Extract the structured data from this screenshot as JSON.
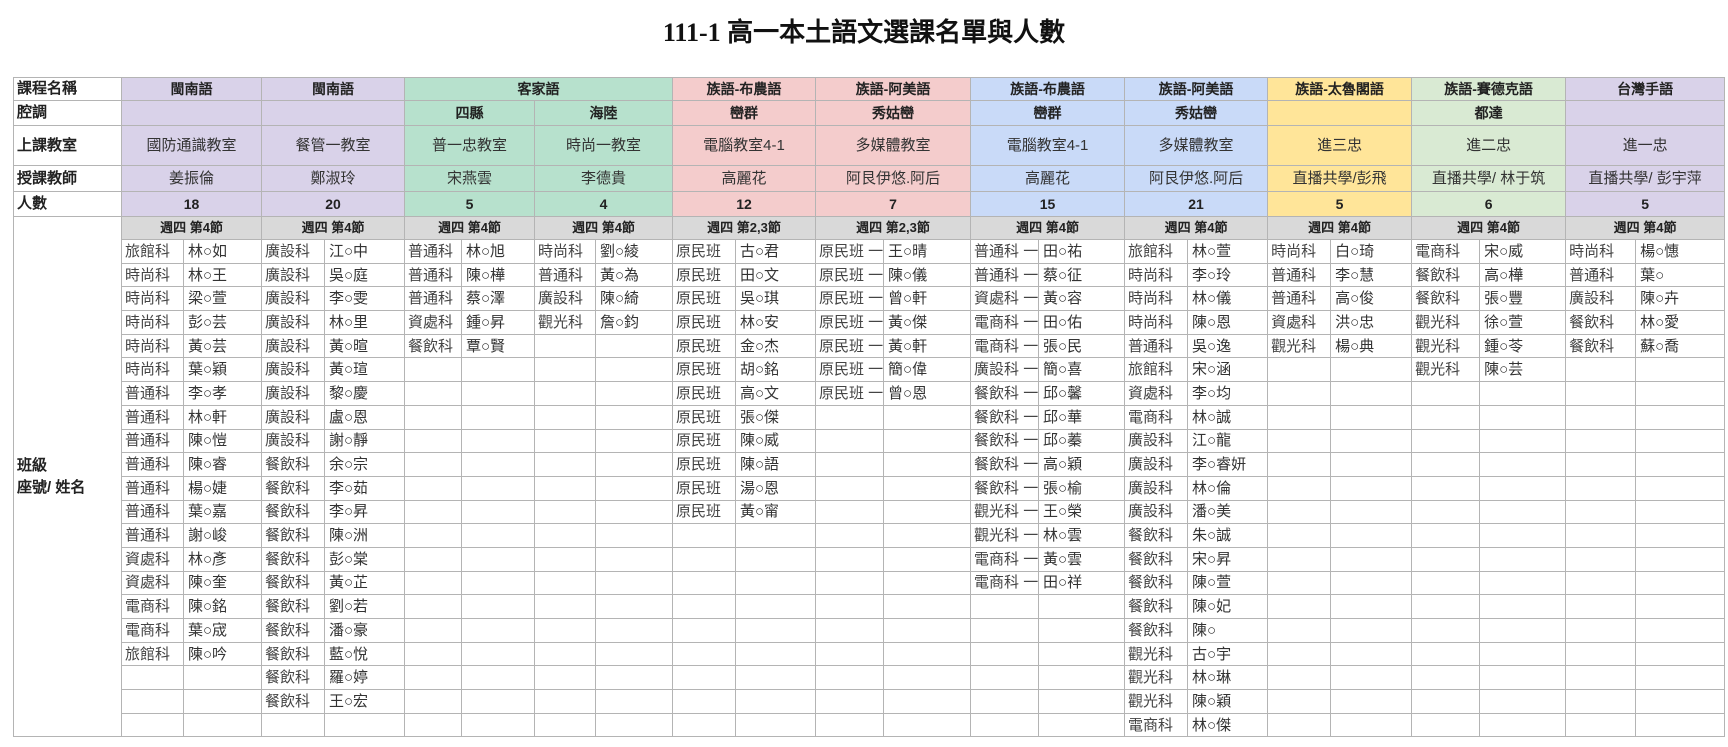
{
  "title": "111-1 高一本土語文選課名單與人數",
  "row_labels": {
    "course": "課程名稱",
    "tone": "腔調",
    "classroom": "上課教室",
    "teacher": "授課教師",
    "count": "人數",
    "roster_line1": "班級",
    "roster_line2": "座號/ 姓名"
  },
  "colors": {
    "purple": "#d9d2e9",
    "green": "#b7e1cd",
    "pink": "#f4cccc",
    "blue": "#c9daf8",
    "yellow": "#ffe599",
    "lightgreen": "#d9ead3",
    "period_gray": "#d9d9d9"
  },
  "course_groups": [
    {
      "name": "閩南語",
      "span": 1,
      "color": "purple"
    },
    {
      "name": "閩南語",
      "span": 1,
      "color": "purple"
    },
    {
      "name": "客家語",
      "span": 2,
      "color": "green"
    },
    {
      "name": "族語-布農語",
      "span": 1,
      "color": "pink"
    },
    {
      "name": "族語-阿美語",
      "span": 1,
      "color": "pink"
    },
    {
      "name": "族語-布農語",
      "span": 1,
      "color": "blue"
    },
    {
      "name": "族語-阿美語",
      "span": 1,
      "color": "blue"
    },
    {
      "name": "族語-太魯閣語",
      "span": 1,
      "color": "yellow"
    },
    {
      "name": "族語-賽德克語",
      "span": 1,
      "color": "lightgreen"
    },
    {
      "name": "台灣手語",
      "span": 1,
      "color": "purple"
    }
  ],
  "columns": [
    {
      "tone": "",
      "classroom": "國防通識教室",
      "teacher": "姜振倫",
      "count": "18",
      "period": "週四 第4節",
      "color": "purple",
      "students": [
        [
          "旅館科",
          "林○如"
        ],
        [
          "時尚科",
          "林○王"
        ],
        [
          "時尚科",
          "梁○萱"
        ],
        [
          "時尚科",
          "彭○芸"
        ],
        [
          "時尚科",
          "黃○芸"
        ],
        [
          "時尚科",
          "葉○穎"
        ],
        [
          "普通科",
          "李○孝"
        ],
        [
          "普通科",
          "林○軒"
        ],
        [
          "普通科",
          "陳○愷"
        ],
        [
          "普通科",
          "陳○睿"
        ],
        [
          "普通科",
          "楊○婕"
        ],
        [
          "普通科",
          "葉○嘉"
        ],
        [
          "普通科",
          "謝○峻"
        ],
        [
          "資處科",
          "林○彥"
        ],
        [
          "資處科",
          "陳○奎"
        ],
        [
          "電商科",
          "陳○銘"
        ],
        [
          "電商科",
          "葉○宬"
        ],
        [
          "旅館科",
          "陳○吟"
        ]
      ]
    },
    {
      "tone": "",
      "classroom": "餐管一教室",
      "teacher": "鄭淑玲",
      "count": "20",
      "period": "週四 第4節",
      "color": "purple",
      "students": [
        [
          "廣設科",
          "江○中"
        ],
        [
          "廣設科",
          "吳○庭"
        ],
        [
          "廣設科",
          "李○雯"
        ],
        [
          "廣設科",
          "林○里"
        ],
        [
          "廣設科",
          "黃○暄"
        ],
        [
          "廣設科",
          "黃○瑄"
        ],
        [
          "廣設科",
          "黎○慶"
        ],
        [
          "廣設科",
          "盧○恩"
        ],
        [
          "廣設科",
          "謝○靜"
        ],
        [
          "餐飲科",
          "余○宗"
        ],
        [
          "餐飲科",
          "李○茹"
        ],
        [
          "餐飲科",
          "李○昇"
        ],
        [
          "餐飲科",
          "陳○洲"
        ],
        [
          "餐飲科",
          "彭○棠"
        ],
        [
          "餐飲科",
          "黃○芷"
        ],
        [
          "餐飲科",
          "劉○若"
        ],
        [
          "餐飲科",
          "潘○豪"
        ],
        [
          "餐飲科",
          "藍○悅"
        ],
        [
          "餐飲科",
          "羅○婷"
        ],
        [
          "餐飲科",
          "王○宏"
        ]
      ]
    },
    {
      "tone": "四縣",
      "classroom": "普一忠教室",
      "teacher": "宋燕雲",
      "count": "5",
      "period": "週四 第4節",
      "color": "green",
      "students": [
        [
          "普通科",
          "林○旭"
        ],
        [
          "普通科",
          "陳○樺"
        ],
        [
          "普通科",
          "蔡○澤"
        ],
        [
          "資處科",
          "鍾○昇"
        ],
        [
          "餐飲科",
          "覃○賢"
        ]
      ]
    },
    {
      "tone": "海陸",
      "classroom": "時尚一教室",
      "teacher": "李德貴",
      "count": "4",
      "period": "週四 第4節",
      "color": "green",
      "students": [
        [
          "時尚科",
          "劉○綾"
        ],
        [
          "普通科",
          "黃○為"
        ],
        [
          "廣設科",
          "陳○綺"
        ],
        [
          "觀光科",
          "詹○鈞"
        ]
      ]
    },
    {
      "tone": "巒群",
      "classroom": "電腦教室4-1",
      "teacher": "高麗花",
      "count": "12",
      "period": "週四 第2,3節",
      "color": "pink",
      "students": [
        [
          "原民班",
          "古○君"
        ],
        [
          "原民班",
          "田○文"
        ],
        [
          "原民班",
          "吳○琪"
        ],
        [
          "原民班",
          "林○安"
        ],
        [
          "原民班",
          "金○杰"
        ],
        [
          "原民班",
          "胡○銘"
        ],
        [
          "原民班",
          "高○文"
        ],
        [
          "原民班",
          "張○傑"
        ],
        [
          "原民班",
          "陳○威"
        ],
        [
          "原民班",
          "陳○語"
        ],
        [
          "原民班",
          "湯○恩"
        ],
        [
          "原民班",
          "黃○甯"
        ]
      ]
    },
    {
      "tone": "秀姑巒",
      "classroom": "多媒體教室",
      "teacher": "阿艮伊悠.阿后",
      "count": "7",
      "period": "週四 第2,3節",
      "color": "pink",
      "students": [
        [
          "原民班 一",
          "王○晴"
        ],
        [
          "原民班 一",
          "陳○儀"
        ],
        [
          "原民班 一",
          "曾○軒"
        ],
        [
          "原民班 一",
          "黃○傑"
        ],
        [
          "原民班 一",
          "黃○軒"
        ],
        [
          "原民班 一",
          "簡○偉"
        ],
        [
          "原民班 一",
          "曾○恩"
        ]
      ]
    },
    {
      "tone": "巒群",
      "classroom": "電腦教室4-1",
      "teacher": "高麗花",
      "count": "15",
      "period": "週四 第4節",
      "color": "blue",
      "students": [
        [
          "普通科 一",
          "田○祐"
        ],
        [
          "普通科 一",
          "蔡○征"
        ],
        [
          "資處科 一",
          "黃○容"
        ],
        [
          "電商科 一",
          "田○佑"
        ],
        [
          "電商科 一",
          "張○民"
        ],
        [
          "廣設科 一",
          "簡○喜"
        ],
        [
          "餐飲科 一",
          "邱○馨"
        ],
        [
          "餐飲科 一",
          "邱○華"
        ],
        [
          "餐飲科 一",
          "邱○蓁"
        ],
        [
          "餐飲科 一",
          "高○穎"
        ],
        [
          "餐飲科 一",
          "張○榆"
        ],
        [
          "觀光科 一",
          "王○榮"
        ],
        [
          "觀光科 一",
          "林○雲"
        ],
        [
          "電商科 一",
          "黃○雲"
        ],
        [
          "電商科 一",
          "田○祥"
        ]
      ]
    },
    {
      "tone": "秀姑巒",
      "classroom": "多媒體教室",
      "teacher": "阿艮伊悠.阿后",
      "count": "21",
      "period": "週四 第4節",
      "color": "blue",
      "students": [
        [
          "旅館科",
          "林○萱"
        ],
        [
          "時尚科",
          "李○玲"
        ],
        [
          "時尚科",
          "林○儀"
        ],
        [
          "時尚科",
          "陳○恩"
        ],
        [
          "普通科",
          "吳○逸"
        ],
        [
          "旅館科",
          "宋○涵"
        ],
        [
          "資處科",
          "李○均"
        ],
        [
          "電商科",
          "林○誠"
        ],
        [
          "廣設科",
          "江○龍"
        ],
        [
          "廣設科",
          "李○睿妍"
        ],
        [
          "廣設科",
          "林○倫"
        ],
        [
          "廣設科",
          "潘○美"
        ],
        [
          "餐飲科",
          "朱○誠"
        ],
        [
          "餐飲科",
          "宋○昇"
        ],
        [
          "餐飲科",
          "陳○萱"
        ],
        [
          "餐飲科",
          "陳○妃"
        ],
        [
          "餐飲科",
          "陳○"
        ],
        [
          "觀光科",
          "古○宇"
        ],
        [
          "觀光科",
          "林○琳"
        ],
        [
          "觀光科",
          "陳○穎"
        ],
        [
          "電商科",
          "林○傑"
        ]
      ]
    },
    {
      "tone": "",
      "classroom": "進三忠",
      "teacher": "直播共學/彭飛",
      "count": "5",
      "period": "週四 第4節",
      "color": "yellow",
      "students": [
        [
          "時尚科",
          "白○琦"
        ],
        [
          "普通科",
          "李○慧"
        ],
        [
          "普通科",
          "高○俊"
        ],
        [
          "資處科",
          "洪○忠"
        ],
        [
          "觀光科",
          "楊○典"
        ]
      ]
    },
    {
      "tone": "都達",
      "classroom": "進二忠",
      "teacher": "直播共學/ 林于筑",
      "count": "6",
      "period": "週四 第4節",
      "color": "lightgreen",
      "students": [
        [
          "電商科",
          "宋○威"
        ],
        [
          "餐飲科",
          "高○樺"
        ],
        [
          "餐飲科",
          "張○豐"
        ],
        [
          "觀光科",
          "徐○萱"
        ],
        [
          "觀光科",
          "鍾○苓"
        ],
        [
          "觀光科",
          "陳○芸"
        ]
      ]
    },
    {
      "tone": "",
      "classroom": "進一忠",
      "teacher": "直播共學/ 彭宇萍",
      "count": "5",
      "period": "週四 第4節",
      "color": "purple",
      "students": [
        [
          "時尚科",
          "楊○憓"
        ],
        [
          "普通科",
          "葉○"
        ],
        [
          "廣設科",
          "陳○卉"
        ],
        [
          "餐飲科",
          "林○愛"
        ],
        [
          "餐飲科",
          "蘇○喬"
        ]
      ]
    }
  ]
}
